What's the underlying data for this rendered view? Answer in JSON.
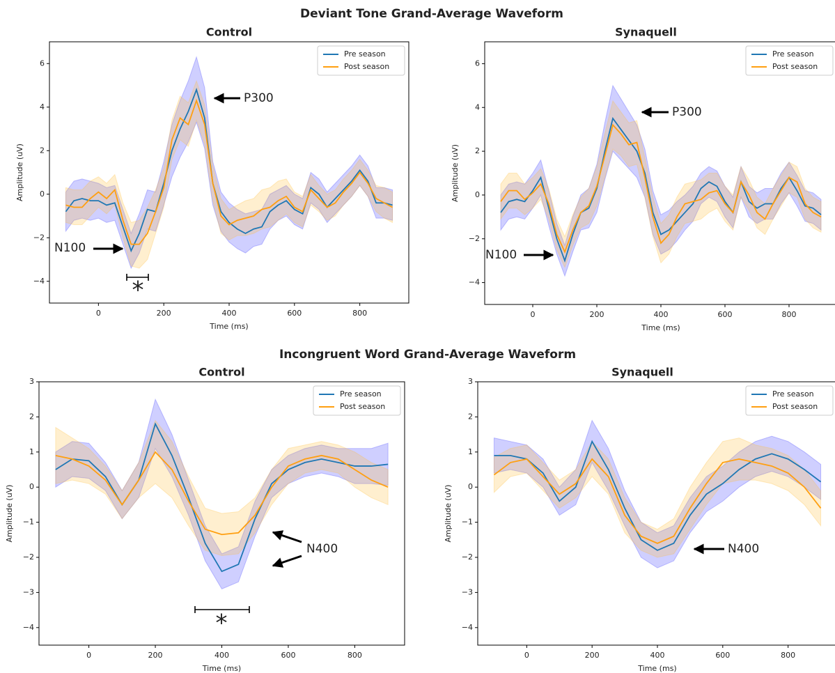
{
  "suptitles": [
    "Deviant Tone Grand-Average Waveform",
    "Incongruent Word Grand-Average Waveform"
  ],
  "chart_data": [
    {
      "type": "line",
      "title": "Control",
      "xlabel": "Time (ms)",
      "ylabel": "Amplitude (uV)",
      "x": [
        -100,
        -75,
        -50,
        -25,
        0,
        25,
        50,
        75,
        100,
        125,
        150,
        175,
        200,
        225,
        250,
        275,
        300,
        325,
        350,
        375,
        400,
        425,
        450,
        475,
        500,
        525,
        550,
        575,
        600,
        625,
        650,
        675,
        700,
        725,
        750,
        775,
        800,
        825,
        850,
        875,
        900
      ],
      "series": [
        {
          "name": "Pre season",
          "color": "#1f77b4",
          "band_color": "#4040ff",
          "values": [
            -0.8,
            -0.3,
            -0.2,
            -0.3,
            -0.3,
            -0.5,
            -0.4,
            -1.5,
            -2.6,
            -1.8,
            -0.7,
            -0.8,
            0.5,
            2.0,
            3.0,
            3.8,
            4.8,
            3.5,
            0.5,
            -0.8,
            -1.3,
            -1.6,
            -1.8,
            -1.6,
            -1.5,
            -0.8,
            -0.5,
            -0.3,
            -0.7,
            -0.9,
            0.3,
            0,
            -0.6,
            -0.2,
            0.2,
            0.6,
            1.1,
            0.6,
            -0.4,
            -0.4,
            -0.5
          ],
          "errors": [
            0.9,
            0.9,
            0.9,
            0.9,
            0.8,
            0.8,
            0.8,
            0.8,
            0.8,
            0.9,
            0.9,
            0.9,
            1.0,
            1.2,
            1.3,
            1.4,
            1.5,
            1.4,
            1.0,
            0.9,
            0.9,
            0.9,
            0.9,
            0.8,
            0.8,
            0.8,
            0.7,
            0.7,
            0.7,
            0.7,
            0.7,
            0.7,
            0.7,
            0.7,
            0.7,
            0.7,
            0.7,
            0.7,
            0.7,
            0.7,
            0.7
          ]
        },
        {
          "name": "Post season",
          "color": "#ff9f10",
          "band_color": "#ffc040",
          "values": [
            -0.5,
            -0.6,
            -0.6,
            -0.2,
            0.1,
            -0.2,
            0.2,
            -1.2,
            -2.3,
            -2.3,
            -1.8,
            -0.8,
            0.3,
            2.5,
            3.5,
            3.2,
            4.3,
            3.2,
            0.5,
            -1.0,
            -1.4,
            -1.2,
            -1.1,
            -1.0,
            -0.7,
            -0.6,
            -0.3,
            -0.1,
            -0.6,
            -0.8,
            0.2,
            -0.2,
            -0.6,
            -0.4,
            0.1,
            0.5,
            1.0,
            0.5,
            -0.2,
            -0.4,
            -0.6
          ],
          "errors": [
            0.8,
            0.8,
            0.8,
            0.8,
            0.7,
            0.7,
            0.7,
            0.8,
            1.0,
            1.1,
            1.2,
            1.0,
            0.9,
            0.9,
            1.0,
            1.0,
            0.9,
            0.9,
            0.8,
            0.8,
            0.7,
            0.7,
            0.8,
            0.8,
            0.9,
            0.9,
            0.9,
            0.8,
            0.7,
            0.7,
            0.7,
            0.6,
            0.6,
            0.6,
            0.6,
            0.6,
            0.6,
            0.6,
            0.6,
            0.7,
            0.7
          ]
        }
      ],
      "annotations": [
        "P300",
        "N100",
        "*"
      ],
      "xlim": [
        -150,
        950
      ],
      "ylim": [
        -5,
        7
      ],
      "xticks": [
        0,
        200,
        400,
        600,
        800
      ],
      "yticks": [
        {
          "value": -4,
          "label": "−4"
        },
        {
          "value": -2,
          "label": "−2"
        },
        0,
        2,
        4,
        6
      ],
      "legend": "upper right"
    },
    {
      "type": "line",
      "title": "Synaquell",
      "xlabel": "Time (ms)",
      "ylabel": "Amplitude (uV)",
      "x": [
        -100,
        -75,
        -50,
        -25,
        0,
        25,
        50,
        75,
        100,
        125,
        150,
        175,
        200,
        225,
        250,
        275,
        300,
        325,
        350,
        375,
        400,
        425,
        450,
        475,
        500,
        525,
        550,
        575,
        600,
        625,
        650,
        675,
        700,
        725,
        750,
        775,
        800,
        825,
        850,
        875,
        900
      ],
      "series": [
        {
          "name": "Pre season",
          "color": "#1f77b4",
          "band_color": "#4040ff",
          "values": [
            -0.8,
            -0.3,
            -0.2,
            -0.3,
            0.2,
            0.8,
            -0.6,
            -2.0,
            -3.0,
            -1.8,
            -0.8,
            -0.6,
            0.3,
            2.0,
            3.5,
            3.0,
            2.5,
            2.0,
            1.0,
            -0.8,
            -1.8,
            -1.6,
            -1.2,
            -0.8,
            -0.4,
            0.3,
            0.6,
            0.4,
            -0.3,
            -0.8,
            0.6,
            -0.3,
            -0.6,
            -0.4,
            -0.4,
            0.3,
            0.8,
            0.2,
            -0.5,
            -0.6,
            -0.9
          ],
          "errors": [
            0.8,
            0.8,
            0.8,
            0.8,
            0.8,
            0.8,
            0.8,
            0.7,
            0.7,
            0.8,
            0.8,
            0.9,
            1.1,
            1.3,
            1.5,
            1.4,
            1.3,
            1.2,
            1.1,
            1.0,
            0.9,
            0.9,
            0.9,
            0.8,
            0.8,
            0.7,
            0.7,
            0.7,
            0.7,
            0.7,
            0.7,
            0.7,
            0.7,
            0.7,
            0.7,
            0.7,
            0.7,
            0.7,
            0.7,
            0.7,
            0.7
          ]
        },
        {
          "name": "Post season",
          "color": "#ff9f10",
          "band_color": "#ffc040",
          "values": [
            -0.3,
            0.2,
            0.2,
            -0.2,
            0.1,
            0.5,
            -0.4,
            -1.8,
            -2.6,
            -1.6,
            -0.8,
            -0.5,
            0.4,
            1.8,
            3.2,
            2.8,
            2.3,
            2.4,
            0.8,
            -1.0,
            -2.2,
            -1.8,
            -1.0,
            -0.4,
            -0.3,
            -0.2,
            0.1,
            0.2,
            -0.4,
            -0.8,
            0.6,
            0,
            -0.8,
            -1.1,
            -0.4,
            0.2,
            0.8,
            0.6,
            -0.4,
            -0.8,
            -1.0
          ],
          "errors": [
            0.8,
            0.8,
            0.8,
            0.7,
            0.7,
            0.7,
            0.7,
            0.7,
            0.7,
            0.7,
            0.7,
            0.8,
            0.9,
            1.0,
            1.1,
            1.0,
            1.0,
            1.0,
            0.9,
            0.9,
            0.9,
            0.9,
            0.9,
            0.9,
            0.9,
            0.9,
            0.9,
            0.8,
            0.8,
            0.8,
            0.7,
            0.7,
            0.7,
            0.7,
            0.7,
            0.7,
            0.7,
            0.7,
            0.7,
            0.7,
            0.7
          ]
        }
      ],
      "annotations": [
        "P300",
        "N100"
      ],
      "xlim": [
        -150,
        950
      ],
      "ylim": [
        -5,
        7
      ],
      "xticks": [
        0,
        200,
        400,
        600,
        800
      ],
      "yticks": [
        {
          "value": -4,
          "label": "−4"
        },
        {
          "value": -2,
          "label": "−2"
        },
        0,
        2,
        4,
        6
      ],
      "legend": "upper right"
    },
    {
      "type": "line",
      "title": "Control",
      "xlabel": "Time (ms)",
      "ylabel": "Amplitude (uV)",
      "x": [
        -100,
        -50,
        0,
        50,
        100,
        150,
        200,
        250,
        300,
        350,
        400,
        450,
        500,
        550,
        600,
        650,
        700,
        750,
        800,
        850,
        900
      ],
      "series": [
        {
          "name": "Pre season",
          "color": "#1f77b4",
          "band_color": "#4040ff",
          "values": [
            0.5,
            0.8,
            0.75,
            0.3,
            -0.5,
            0.2,
            1.8,
            0.9,
            -0.3,
            -1.6,
            -2.4,
            -2.2,
            -0.9,
            0.1,
            0.5,
            0.7,
            0.8,
            0.7,
            0.6,
            0.6,
            0.65
          ],
          "errors": [
            0.5,
            0.5,
            0.5,
            0.4,
            0.4,
            0.5,
            0.7,
            0.6,
            0.5,
            0.5,
            0.5,
            0.5,
            0.5,
            0.4,
            0.4,
            0.4,
            0.4,
            0.4,
            0.5,
            0.5,
            0.6
          ]
        },
        {
          "name": "Post season",
          "color": "#ff9f10",
          "band_color": "#ffc040",
          "values": [
            0.9,
            0.8,
            0.6,
            0.2,
            -0.5,
            0.2,
            1.0,
            0.5,
            -0.4,
            -1.2,
            -1.35,
            -1.3,
            -0.8,
            0,
            0.6,
            0.8,
            0.9,
            0.8,
            0.5,
            0.2,
            0.0
          ],
          "errors": [
            0.8,
            0.6,
            0.5,
            0.4,
            0.4,
            0.5,
            0.9,
            0.8,
            0.7,
            0.6,
            0.6,
            0.6,
            0.5,
            0.5,
            0.5,
            0.4,
            0.4,
            0.4,
            0.5,
            0.5,
            0.5
          ]
        }
      ],
      "annotations": [
        "N400",
        "*"
      ],
      "xlim": [
        -150,
        950
      ],
      "ylim": [
        -4.5,
        3
      ],
      "xticks": [
        0,
        200,
        400,
        600,
        800
      ],
      "yticks": [
        {
          "value": -4,
          "label": "−4"
        },
        {
          "value": -3,
          "label": "−3"
        },
        {
          "value": -2,
          "label": "−2"
        },
        {
          "value": -1,
          "label": "−1"
        },
        0,
        1,
        2,
        3
      ],
      "legend": "upper right"
    },
    {
      "type": "line",
      "title": "Synaquell",
      "xlabel": "Time (ms)",
      "ylabel": "Amplitude (uV)",
      "x": [
        -100,
        -50,
        0,
        50,
        100,
        150,
        200,
        250,
        300,
        350,
        400,
        450,
        500,
        550,
        600,
        650,
        700,
        750,
        800,
        850,
        900
      ],
      "series": [
        {
          "name": "Pre season",
          "color": "#1f77b4",
          "band_color": "#4040ff",
          "values": [
            0.9,
            0.9,
            0.8,
            0.4,
            -0.4,
            0.0,
            1.3,
            0.5,
            -0.6,
            -1.5,
            -1.8,
            -1.6,
            -0.8,
            -0.2,
            0.1,
            0.5,
            0.8,
            0.95,
            0.8,
            0.5,
            0.15
          ],
          "errors": [
            0.5,
            0.4,
            0.4,
            0.4,
            0.4,
            0.5,
            0.6,
            0.6,
            0.5,
            0.5,
            0.5,
            0.5,
            0.5,
            0.5,
            0.5,
            0.5,
            0.5,
            0.5,
            0.5,
            0.5,
            0.5
          ]
        },
        {
          "name": "Post season",
          "color": "#ff9f10",
          "band_color": "#ffc040",
          "values": [
            0.35,
            0.7,
            0.8,
            0.3,
            -0.2,
            0.1,
            0.8,
            0.3,
            -0.8,
            -1.4,
            -1.6,
            -1.4,
            -0.6,
            0.1,
            0.7,
            0.8,
            0.7,
            0.6,
            0.4,
            0.0,
            -0.6
          ],
          "errors": [
            0.5,
            0.4,
            0.4,
            0.4,
            0.4,
            0.4,
            0.5,
            0.5,
            0.5,
            0.4,
            0.4,
            0.5,
            0.6,
            0.6,
            0.6,
            0.6,
            0.5,
            0.5,
            0.5,
            0.5,
            0.5
          ]
        }
      ],
      "annotations": [
        "N400"
      ],
      "xlim": [
        -150,
        950
      ],
      "ylim": [
        -4.5,
        3
      ],
      "xticks": [
        0,
        200,
        400,
        600,
        800
      ],
      "yticks": [
        {
          "value": -4,
          "label": "−4"
        },
        {
          "value": -3,
          "label": "−3"
        },
        {
          "value": -2,
          "label": "−2"
        },
        {
          "value": -1,
          "label": "−1"
        },
        0,
        1,
        2,
        3
      ],
      "legend": "upper right"
    }
  ]
}
